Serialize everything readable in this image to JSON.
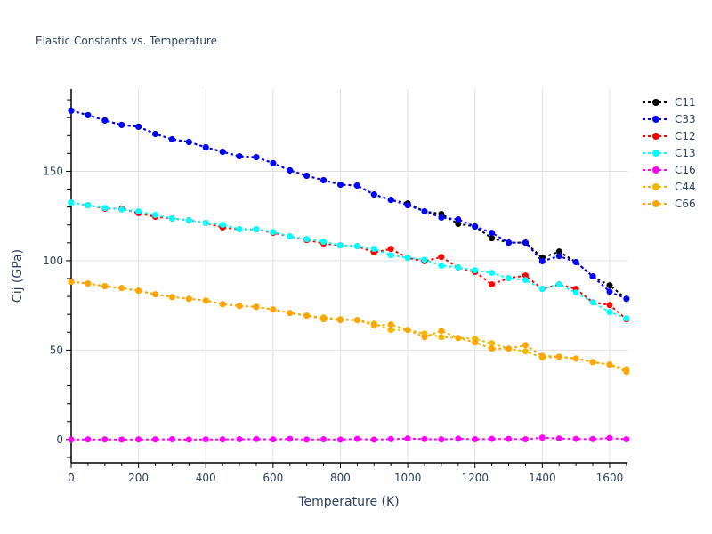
{
  "chart_data": {
    "type": "line",
    "title": "Elastic Constants vs. Temperature",
    "xlabel": "Temperature (K)",
    "ylabel": "Cij (GPa)",
    "xlim": [
      0,
      1653
    ],
    "ylim": [
      -13,
      196
    ],
    "xticks": [
      0,
      200,
      400,
      600,
      800,
      1000,
      1200,
      1400,
      1600
    ],
    "xtick_labels": [
      "0",
      "200",
      "400",
      "600",
      "800",
      "1000",
      "1200",
      "1400",
      "1600"
    ],
    "yticks": [
      0,
      50,
      100,
      150
    ],
    "ytick_labels": [
      "0",
      "50",
      "100",
      "150"
    ],
    "grid": true,
    "legend_position": "right",
    "x": [
      0,
      50,
      100,
      150,
      200,
      250,
      300,
      350,
      400,
      450,
      500,
      550,
      600,
      650,
      700,
      750,
      800,
      850,
      900,
      950,
      1000,
      1050,
      1100,
      1150,
      1200,
      1250,
      1300,
      1350,
      1400,
      1450,
      1500,
      1550,
      1600,
      1650
    ],
    "series": [
      {
        "name": "C11",
        "color": "#000000",
        "values": [
          183.9,
          181.4,
          178.4,
          175.9,
          174.9,
          170.9,
          167.9,
          166.4,
          163.4,
          160.9,
          158.4,
          157.9,
          154.5,
          150.5,
          147.5,
          145.0,
          142.5,
          142.0,
          137.0,
          134.0,
          132.0,
          127.6,
          126.1,
          120.6,
          119.1,
          112.6,
          110.1,
          110.1,
          101.6,
          105.1,
          99.2,
          91.2,
          86.2,
          78.7
        ]
      },
      {
        "name": "C33",
        "color": "#0000ff",
        "values": [
          183.9,
          181.4,
          178.4,
          175.9,
          174.9,
          170.9,
          167.9,
          166.4,
          163.4,
          160.9,
          158.4,
          157.9,
          154.5,
          150.5,
          147.5,
          145.0,
          142.5,
          142.0,
          137.0,
          134.0,
          131.0,
          127.6,
          124.1,
          123.1,
          119.1,
          115.6,
          110.1,
          110.1,
          99.7,
          102.6,
          99.2,
          91.2,
          82.7,
          78.7
        ]
      },
      {
        "name": "C12",
        "color": "#ff0000",
        "values": [
          132.5,
          131.0,
          129.1,
          129.1,
          126.6,
          124.6,
          123.6,
          122.6,
          121.1,
          118.6,
          117.6,
          117.6,
          115.6,
          113.6,
          111.6,
          109.6,
          108.6,
          108.1,
          104.6,
          106.6,
          101.6,
          99.7,
          102.1,
          96.2,
          93.7,
          86.7,
          90.2,
          91.7,
          84.2,
          86.7,
          84.2,
          76.7,
          75.2,
          67.3
        ]
      },
      {
        "name": "C13",
        "color": "#00ffff",
        "values": [
          132.5,
          131.0,
          129.5,
          128.6,
          127.6,
          125.6,
          123.6,
          122.6,
          121.1,
          120.1,
          117.6,
          117.6,
          116.1,
          113.6,
          112.1,
          110.6,
          108.6,
          108.1,
          106.6,
          103.1,
          101.6,
          100.6,
          97.2,
          96.2,
          94.7,
          93.2,
          90.2,
          89.2,
          84.2,
          86.7,
          82.2,
          76.7,
          71.3,
          67.8
        ]
      },
      {
        "name": "C16",
        "color": "#ff00ff",
        "values": [
          0.0,
          0.1,
          0.1,
          0.0,
          0.1,
          0.1,
          0.2,
          0.0,
          0.1,
          0.1,
          0.2,
          0.3,
          0.1,
          0.4,
          0.0,
          0.2,
          0.0,
          0.4,
          0.0,
          0.3,
          0.6,
          0.3,
          0.1,
          0.5,
          0.2,
          0.4,
          0.4,
          0.2,
          1.1,
          0.6,
          0.4,
          0.3,
          0.9,
          0.2
        ]
      },
      {
        "name": "C44",
        "color": "#f0b800",
        "values": [
          88.2,
          87.2,
          85.7,
          84.7,
          83.2,
          81.2,
          79.7,
          78.7,
          77.7,
          75.7,
          74.7,
          74.2,
          72.7,
          70.8,
          69.3,
          68.3,
          67.3,
          66.8,
          64.8,
          61.3,
          61.3,
          59.3,
          57.3,
          56.8,
          56.3,
          53.8,
          50.8,
          49.3,
          45.8,
          46.3,
          45.3,
          43.3,
          41.9,
          39.4
        ]
      },
      {
        "name": "C66",
        "color": "#ffa500",
        "values": [
          88.2,
          87.2,
          85.7,
          84.7,
          83.2,
          81.2,
          79.7,
          78.7,
          77.7,
          75.7,
          74.7,
          74.2,
          72.7,
          70.8,
          69.3,
          67.3,
          66.8,
          66.8,
          63.8,
          64.3,
          61.3,
          57.3,
          60.8,
          56.8,
          54.3,
          50.8,
          50.8,
          52.8,
          46.8,
          46.3,
          45.3,
          43.3,
          41.9,
          37.9
        ]
      }
    ]
  }
}
